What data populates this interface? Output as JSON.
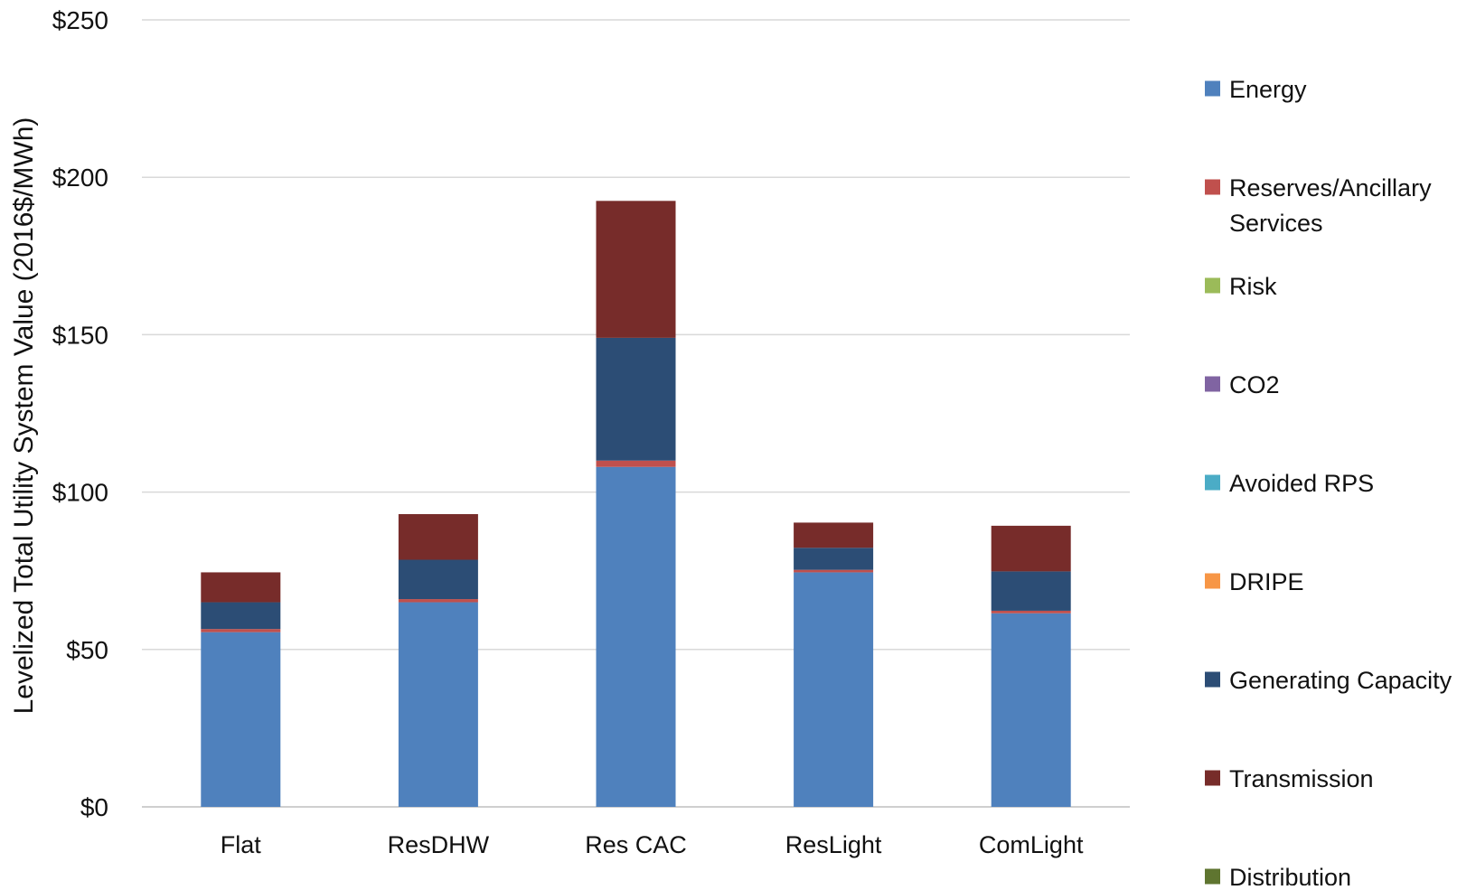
{
  "chart_data": {
    "type": "bar",
    "stacked": true,
    "title": "",
    "xlabel": "",
    "ylabel": "Levelized Total Utility System Value (2016$/MWh)",
    "ylim": [
      0,
      250
    ],
    "yticks": [
      0,
      50,
      100,
      150,
      200,
      250
    ],
    "ytick_labels": [
      "$0",
      "$50",
      "$100",
      "$150",
      "$200",
      "$250"
    ],
    "grid": true,
    "legend_position": "right",
    "categories": [
      "Flat",
      "ResDHW",
      "Res CAC",
      "ResLight",
      "ComLight"
    ],
    "series": [
      {
        "name": "Energy",
        "color": "#4F81BD",
        "values": [
          55.5,
          65,
          108,
          74.5,
          61.5
        ]
      },
      {
        "name": "Reserves/Ancillary Services",
        "color": "#C0504D",
        "values": [
          1,
          1,
          2,
          0.8,
          0.8
        ]
      },
      {
        "name": "Risk",
        "color": "#9BBB59",
        "values": [
          0,
          0,
          0,
          0,
          0
        ]
      },
      {
        "name": "CO2",
        "color": "#8064A2",
        "values": [
          0,
          0,
          0,
          0,
          0
        ]
      },
      {
        "name": "Avoided RPS",
        "color": "#4BACC6",
        "values": [
          0,
          0,
          0,
          0,
          0
        ]
      },
      {
        "name": "DRIPE",
        "color": "#F79646",
        "values": [
          0,
          0,
          0,
          0,
          0
        ]
      },
      {
        "name": "Generating Capacity",
        "color": "#2C4D75",
        "values": [
          8.5,
          12.5,
          39,
          7,
          12.5
        ]
      },
      {
        "name": "Transmission",
        "color": "#772C2A",
        "values": [
          9.5,
          14.5,
          43.5,
          8,
          14.5
        ]
      },
      {
        "name": "Distribution",
        "color": "#5F7530",
        "values": [
          0,
          0,
          0,
          0,
          0
        ]
      }
    ]
  }
}
